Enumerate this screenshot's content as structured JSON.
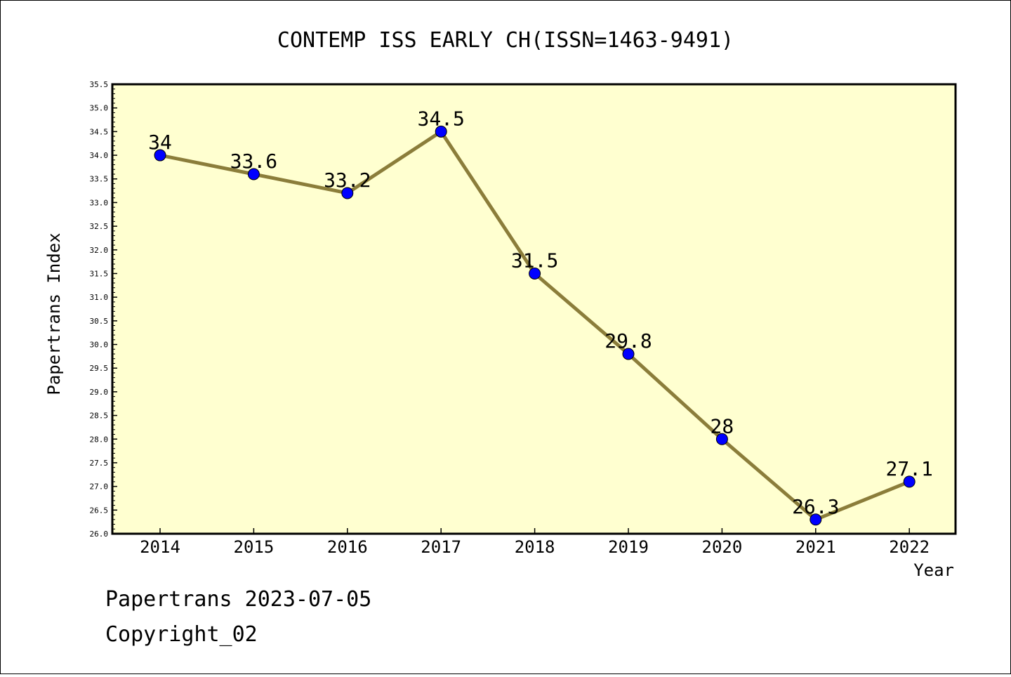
{
  "chart_data": {
    "type": "line",
    "title": "CONTEMP ISS EARLY CH(ISSN=1463-9491)",
    "xlabel": "Year",
    "ylabel": "Papertrans Index",
    "categories": [
      "2014",
      "2015",
      "2016",
      "2017",
      "2018",
      "2019",
      "2020",
      "2021",
      "2022"
    ],
    "series": [
      {
        "values": [
          34,
          33.6,
          33.2,
          34.5,
          31.5,
          29.8,
          28,
          26.3,
          27.1
        ],
        "labels": [
          "34",
          "33.6",
          "33.2",
          "34.5",
          "31.5",
          "29.8",
          "28",
          "26.3",
          "27.1"
        ]
      }
    ],
    "ylim": [
      26.0,
      35.5
    ],
    "yticks": [
      "26.0",
      "26.5",
      "27.0",
      "27.5",
      "28.0",
      "28.5",
      "29.0",
      "29.5",
      "30.0",
      "30.5",
      "31.0",
      "31.5",
      "32.0",
      "32.5",
      "33.0",
      "33.5",
      "34.0",
      "34.5",
      "35.0",
      "35.5"
    ],
    "grid": false,
    "colors": {
      "plot_background": "#ffffd0",
      "line": "#8b7d3a",
      "marker": "#0000ff"
    }
  },
  "footer": {
    "date_text": "Papertrans 2023-07-05",
    "copyright_text": "Copyright_02"
  }
}
